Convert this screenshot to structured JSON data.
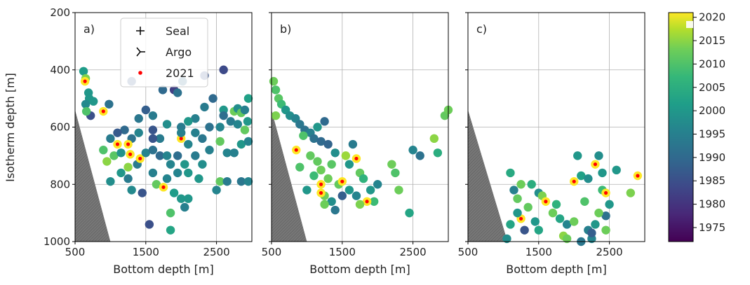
{
  "chart_data": {
    "type": "scatter",
    "xlim": [
      500,
      3000
    ],
    "ylim": [
      1000,
      200
    ],
    "x_ticks": [
      "500",
      "1500",
      "2500"
    ],
    "x_tick_values": [
      500,
      1500,
      2500
    ],
    "y_ticks": [
      "200",
      "400",
      "600",
      "800",
      "1000"
    ],
    "y_tick_values": [
      200,
      400,
      600,
      800,
      1000
    ],
    "ylabel": "Isotherm depth [m]",
    "grid": true,
    "colorbar": {
      "colormap": "viridis",
      "range": [
        1972,
        2021
      ],
      "ticks": [
        "1975",
        "1980",
        "1985",
        "1990",
        "1995",
        "2000",
        "2005",
        "2010",
        "2015",
        "2020"
      ],
      "tick_values": [
        1975,
        1980,
        1985,
        1990,
        1995,
        2000,
        2005,
        2010,
        2015,
        2020
      ]
    },
    "legend": {
      "placement": "top-left of panel a",
      "entries": [
        {
          "label": "Seal",
          "marker": "plus",
          "color": "#000000"
        },
        {
          "label": "Argo",
          "marker": "tri",
          "color": "#000000"
        },
        {
          "label": "2021",
          "marker": "dot",
          "color": "#ff0000"
        }
      ]
    },
    "panels": [
      {
        "label": "a)",
        "xlabel": "Bottom depth [m]",
        "points": [
          [
            620,
            405,
            2001
          ],
          [
            650,
            430,
            2014
          ],
          [
            640,
            440,
            2021
          ],
          [
            690,
            480,
            2000
          ],
          [
            700,
            500,
            2000
          ],
          [
            650,
            520,
            1997
          ],
          [
            760,
            510,
            2000
          ],
          [
            720,
            560,
            1985
          ],
          [
            660,
            545,
            2010
          ],
          [
            900,
            545,
            2021
          ],
          [
            980,
            520,
            1992
          ],
          [
            1300,
            440,
            1987
          ],
          [
            1900,
            470,
            1982
          ],
          [
            1950,
            480,
            1992
          ],
          [
            1740,
            470,
            1990
          ],
          [
            2020,
            440,
            1990
          ],
          [
            2330,
            420,
            1986
          ],
          [
            2600,
            400,
            1984
          ],
          [
            2330,
            530,
            1994
          ],
          [
            2450,
            500,
            1990
          ],
          [
            2600,
            540,
            2000
          ],
          [
            2750,
            545,
            2013
          ],
          [
            2800,
            535,
            1998
          ],
          [
            2850,
            550,
            2012
          ],
          [
            2950,
            500,
            2002
          ],
          [
            2900,
            540,
            1995
          ],
          [
            2940,
            580,
            2000
          ],
          [
            2700,
            580,
            1994
          ],
          [
            2600,
            560,
            1991
          ],
          [
            2550,
            600,
            1996
          ],
          [
            2400,
            600,
            1992
          ],
          [
            2200,
            570,
            1995
          ],
          [
            2100,
            580,
            2000
          ],
          [
            2000,
            600,
            1994
          ],
          [
            1800,
            590,
            1998
          ],
          [
            1600,
            560,
            1994
          ],
          [
            1500,
            540,
            1988
          ],
          [
            1400,
            570,
            1993
          ],
          [
            1600,
            610,
            1986
          ],
          [
            1700,
            640,
            1994
          ],
          [
            1400,
            620,
            1996
          ],
          [
            1300,
            640,
            1992
          ],
          [
            1200,
            610,
            1990
          ],
          [
            1100,
            620,
            1987
          ],
          [
            1000,
            640,
            1994
          ],
          [
            900,
            680,
            2010
          ],
          [
            950,
            720,
            2015
          ],
          [
            1050,
            700,
            2011
          ],
          [
            1100,
            660,
            2021
          ],
          [
            1150,
            690,
            1999
          ],
          [
            1250,
            660,
            2021
          ],
          [
            1280,
            695,
            2021
          ],
          [
            1380,
            730,
            1994
          ],
          [
            1420,
            710,
            2021
          ],
          [
            1500,
            690,
            1996
          ],
          [
            1600,
            680,
            1992
          ],
          [
            1700,
            700,
            1990
          ],
          [
            1800,
            700,
            1996
          ],
          [
            1850,
            730,
            1996
          ],
          [
            1950,
            700,
            1991
          ],
          [
            2000,
            640,
            2021
          ],
          [
            2100,
            660,
            1996
          ],
          [
            2200,
            700,
            1994
          ],
          [
            2300,
            730,
            1998
          ],
          [
            2400,
            680,
            1995
          ],
          [
            2550,
            650,
            2012
          ],
          [
            2650,
            690,
            1996
          ],
          [
            2750,
            690,
            1995
          ],
          [
            2850,
            660,
            2000
          ],
          [
            2950,
            650,
            1996
          ],
          [
            2900,
            610,
            2012
          ],
          [
            2800,
            590,
            1996
          ],
          [
            2200,
            620,
            1995
          ],
          [
            2300,
            640,
            1993
          ],
          [
            2100,
            760,
            2000
          ],
          [
            2250,
            780,
            2000
          ],
          [
            2550,
            790,
            2012
          ],
          [
            2650,
            790,
            1994
          ],
          [
            2850,
            790,
            1993
          ],
          [
            2950,
            790,
            1996
          ],
          [
            1000,
            790,
            1998
          ],
          [
            1250,
            780,
            1994
          ],
          [
            1300,
            820,
            1997
          ],
          [
            1450,
            830,
            1986
          ],
          [
            1650,
            800,
            2012
          ],
          [
            1750,
            810,
            2021
          ],
          [
            1900,
            830,
            2001
          ],
          [
            2000,
            850,
            2000
          ],
          [
            1850,
            900,
            2010
          ],
          [
            1550,
            940,
            1985
          ],
          [
            1850,
            960,
            2003
          ],
          [
            2050,
            880,
            1995
          ],
          [
            2100,
            850,
            2000
          ],
          [
            2500,
            820,
            1996
          ],
          [
            1250,
            740,
            2015
          ],
          [
            1150,
            760,
            2000
          ],
          [
            1950,
            760,
            1996
          ],
          [
            1800,
            780,
            1996
          ],
          [
            1600,
            760,
            1995
          ],
          [
            2050,
            730,
            2000
          ],
          [
            1600,
            640,
            1986
          ],
          [
            2000,
            620,
            1995
          ]
        ]
      },
      {
        "label": "b)",
        "xlabel": "Bottom depth [m]",
        "points": [
          [
            530,
            440,
            2013
          ],
          [
            560,
            470,
            2010
          ],
          [
            600,
            500,
            2011
          ],
          [
            640,
            520,
            2008
          ],
          [
            700,
            540,
            2000
          ],
          [
            760,
            560,
            1998
          ],
          [
            840,
            570,
            1996
          ],
          [
            900,
            590,
            1993
          ],
          [
            970,
            610,
            1992
          ],
          [
            1050,
            620,
            1995
          ],
          [
            1100,
            640,
            1992
          ],
          [
            1200,
            650,
            1990
          ],
          [
            1300,
            660,
            1989
          ],
          [
            1400,
            690,
            1998
          ],
          [
            560,
            560,
            2014
          ],
          [
            950,
            630,
            2010
          ],
          [
            1150,
            600,
            2000
          ],
          [
            1250,
            580,
            1990
          ],
          [
            850,
            680,
            2021
          ],
          [
            900,
            740,
            2010
          ],
          [
            1050,
            700,
            2012
          ],
          [
            1150,
            720,
            2012
          ],
          [
            1200,
            750,
            2013
          ],
          [
            1300,
            780,
            2013
          ],
          [
            1200,
            800,
            2021
          ],
          [
            1250,
            840,
            2013
          ],
          [
            1200,
            830,
            2021
          ],
          [
            1350,
            860,
            1998
          ],
          [
            1450,
            800,
            2012
          ],
          [
            1500,
            790,
            2021
          ],
          [
            1600,
            730,
            2000
          ],
          [
            1700,
            710,
            2021
          ],
          [
            1650,
            660,
            1994
          ],
          [
            1750,
            760,
            2012
          ],
          [
            1800,
            780,
            2006
          ],
          [
            1900,
            820,
            2000
          ],
          [
            1950,
            860,
            2008
          ],
          [
            1850,
            860,
            2021
          ],
          [
            1750,
            870,
            2014
          ],
          [
            2000,
            800,
            1996
          ],
          [
            2200,
            730,
            2013
          ],
          [
            2300,
            820,
            2013
          ],
          [
            2250,
            760,
            2010
          ],
          [
            2500,
            680,
            1996
          ],
          [
            2600,
            700,
            1992
          ],
          [
            2800,
            640,
            2015
          ],
          [
            2850,
            690,
            2005
          ],
          [
            2950,
            560,
            2012
          ],
          [
            3000,
            540,
            2013
          ],
          [
            2450,
            900,
            2003
          ],
          [
            1600,
            820,
            2000
          ],
          [
            1500,
            840,
            1988
          ],
          [
            1400,
            890,
            1993
          ],
          [
            1000,
            820,
            2000
          ],
          [
            1100,
            770,
            2008
          ],
          [
            1350,
            730,
            2011
          ],
          [
            1550,
            700,
            2016
          ],
          [
            1250,
            870,
            2013
          ],
          [
            1700,
            840,
            1996
          ]
        ]
      },
      {
        "label": "c)",
        "xlabel": "Bottom depth [m]",
        "points": [
          [
            1100,
            760,
            2004
          ],
          [
            1150,
            820,
            1995
          ],
          [
            1200,
            850,
            2012
          ],
          [
            1250,
            800,
            2013
          ],
          [
            1350,
            880,
            2012
          ],
          [
            1400,
            800,
            2005
          ],
          [
            1500,
            830,
            1998
          ],
          [
            1550,
            840,
            2014
          ],
          [
            1600,
            860,
            2021
          ],
          [
            1450,
            930,
            2000
          ],
          [
            1500,
            960,
            2003
          ],
          [
            1300,
            960,
            1986
          ],
          [
            1250,
            920,
            2021
          ],
          [
            1200,
            900,
            2000
          ],
          [
            1100,
            940,
            2003
          ],
          [
            1050,
            990,
            1998
          ],
          [
            1700,
            900,
            2013
          ],
          [
            1750,
            870,
            2006
          ],
          [
            1800,
            920,
            2003
          ],
          [
            1850,
            980,
            2015
          ],
          [
            1900,
            940,
            1996
          ],
          [
            2000,
            930,
            2013
          ],
          [
            2000,
            790,
            2021
          ],
          [
            2050,
            700,
            2000
          ],
          [
            2100,
            770,
            2002
          ],
          [
            2150,
            860,
            2010
          ],
          [
            2200,
            780,
            1998
          ],
          [
            2300,
            730,
            2021
          ],
          [
            2350,
            700,
            1998
          ],
          [
            2400,
            760,
            2000
          ],
          [
            2400,
            820,
            2008
          ],
          [
            2450,
            830,
            2021
          ],
          [
            2500,
            870,
            2000
          ],
          [
            2450,
            910,
            1992
          ],
          [
            2350,
            900,
            2013
          ],
          [
            2300,
            940,
            2000
          ],
          [
            2250,
            990,
            1996
          ],
          [
            2200,
            960,
            1995
          ],
          [
            2100,
            1000,
            1993
          ],
          [
            2600,
            750,
            2000
          ],
          [
            2800,
            830,
            2014
          ],
          [
            2900,
            770,
            2021
          ],
          [
            2450,
            960,
            2013
          ],
          [
            2250,
            970,
            1988
          ],
          [
            1900,
            990,
            2013
          ]
        ]
      }
    ]
  }
}
